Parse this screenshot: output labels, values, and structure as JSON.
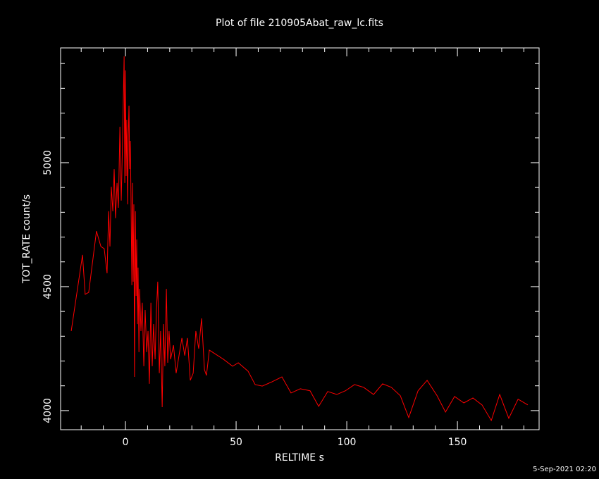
{
  "chart_data": {
    "type": "line",
    "title": "Plot of file 210905Abat_raw_lc.fits",
    "x_label": "RELTIME  s",
    "y_label": "TOT_RATE  count/s",
    "timestamp": "5-Sep-2021 02:20",
    "xlim": [
      -29.3,
      186.9
    ],
    "ylim": [
      3923,
      5463
    ],
    "xticks": [
      0,
      50,
      100,
      150
    ],
    "yticks": [
      4000,
      4500,
      5000
    ],
    "xminorticks": [
      -20,
      -10,
      10,
      20,
      30,
      40,
      60,
      70,
      80,
      90,
      110,
      120,
      130,
      140,
      160,
      170,
      180
    ],
    "yminorticks": [
      4100,
      4200,
      4300,
      4400,
      4600,
      4700,
      4800,
      4900,
      5100,
      5200,
      5300,
      5400
    ],
    "series": [
      {
        "name": "TOT_RATE",
        "color": "#ff0000",
        "x": [
          -24.5,
          -19.4,
          -18.2,
          -16.6,
          -13.1,
          -11.1,
          -9.6,
          -8.3,
          -7.6,
          -7.0,
          -6.4,
          -5.7,
          -5.1,
          -4.5,
          -3.8,
          -3.2,
          -2.5,
          -1.9,
          -1.3,
          -0.6,
          -0.3,
          0,
          0.3,
          0.6,
          1.0,
          1.3,
          1.6,
          1.9,
          2.2,
          2.5,
          2.9,
          3.2,
          3.5,
          3.8,
          4.1,
          4.5,
          4.8,
          5.1,
          5.4,
          5.7,
          6.1,
          6.4,
          7.0,
          7.6,
          8.3,
          8.9,
          9.6,
          10.2,
          10.8,
          11.5,
          12.1,
          12.7,
          13.4,
          14.0,
          14.6,
          15.3,
          15.9,
          16.6,
          17.2,
          17.8,
          18.5,
          19.1,
          19.7,
          20.4,
          21.7,
          22.9,
          24.2,
          25.5,
          26.8,
          28.0,
          29.3,
          30.6,
          31.8,
          33.1,
          34.4,
          35.7,
          36.6,
          37.9,
          44.3,
          48.4,
          51.0,
          55.4,
          58.6,
          61.8,
          66.2,
          70.7,
          74.8,
          79.0,
          83.4,
          87.3,
          91.4,
          95.5,
          99.4,
          103.5,
          107.6,
          112.1,
          116.2,
          120.1,
          124.2,
          128.0,
          132.2,
          136.3,
          140.8,
          144.6,
          148.7,
          152.9,
          157.0,
          161.1,
          165.3,
          169.1,
          173.2,
          177.4,
          181.8
        ],
        "values": [
          4321,
          4628,
          4469,
          4477,
          4724,
          4662,
          4653,
          4554,
          4804,
          4662,
          4903,
          4804,
          4974,
          4776,
          4918,
          4818,
          5145,
          4847,
          5088,
          5429,
          4918,
          5372,
          4946,
          5173,
          4832,
          5116,
          5230,
          4974,
          5088,
          4861,
          4506,
          4918,
          4520,
          4832,
          4136,
          4804,
          4463,
          4690,
          4349,
          4577,
          4236,
          4491,
          4321,
          4435,
          4179,
          4406,
          4236,
          4321,
          4108,
          4435,
          4179,
          4349,
          4207,
          4406,
          4520,
          4151,
          4321,
          4014,
          4349,
          4179,
          4491,
          4193,
          4321,
          4207,
          4264,
          4151,
          4222,
          4293,
          4222,
          4293,
          4122,
          4151,
          4321,
          4250,
          4372,
          4165,
          4142,
          4244,
          4207,
          4179,
          4193,
          4159,
          4105,
          4099,
          4116,
          4136,
          4071,
          4088,
          4080,
          4017,
          4077,
          4065,
          4080,
          4105,
          4094,
          4065,
          4108,
          4094,
          4060,
          3972,
          4080,
          4122,
          4060,
          3994,
          4057,
          4031,
          4051,
          4023,
          3960,
          4065,
          3969,
          4046,
          4023
        ]
      }
    ]
  }
}
